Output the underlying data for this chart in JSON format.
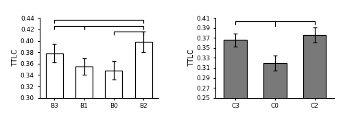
{
  "left": {
    "categories": [
      "B3",
      "B1",
      "B0",
      "B2"
    ],
    "values": [
      0.378,
      0.355,
      0.348,
      0.398
    ],
    "errors": [
      0.016,
      0.014,
      0.016,
      0.018
    ],
    "bar_color": "white",
    "bar_edgecolor": "black",
    "ylabel": "TTLC",
    "ylim": [
      0.3,
      0.44
    ],
    "yticks": [
      0.3,
      0.32,
      0.34,
      0.36,
      0.38,
      0.4,
      0.42,
      0.44
    ]
  },
  "right": {
    "categories": [
      "C3",
      "C0",
      "C2"
    ],
    "values": [
      0.366,
      0.32,
      0.376
    ],
    "errors": [
      0.013,
      0.015,
      0.015
    ],
    "bar_color": "#797979",
    "bar_edgecolor": "black",
    "ylabel": "TTLC",
    "ylim": [
      0.25,
      0.41
    ],
    "yticks": [
      0.25,
      0.27,
      0.29,
      0.31,
      0.33,
      0.35,
      0.37,
      0.39,
      0.41
    ]
  }
}
